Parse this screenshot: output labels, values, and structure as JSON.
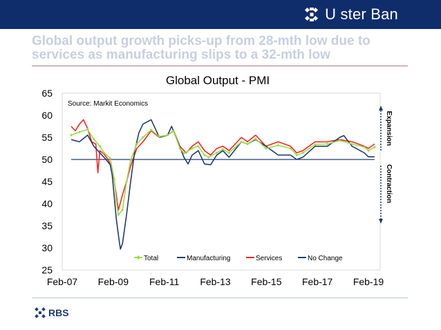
{
  "header": {
    "brand_name": "U ster Ban",
    "brand_icon": "bank-daisy-logo-icon",
    "background_color": "#0f2d6b"
  },
  "headline": {
    "line1": "Global output growth picks-up from 28-mth low due to",
    "line2": "services as manufacturing slips to a 32-mth low"
  },
  "footer": {
    "logo_text": "RBS",
    "logo_icon": "rbs-daisy-logo-icon"
  },
  "chart_data": {
    "type": "line",
    "title": "Global Output - PMI",
    "source": "Source: Markit Economics",
    "x_ticks": [
      "Feb-07",
      "Feb-09",
      "Feb-11",
      "Feb-13",
      "Feb-15",
      "Feb-17",
      "Feb-19"
    ],
    "x_range": [
      "2007-02",
      "2019-02"
    ],
    "ylim": [
      25,
      65
    ],
    "y_ticks": [
      25,
      30,
      35,
      40,
      45,
      50,
      55,
      60,
      65
    ],
    "grid": false,
    "legend_position": "bottom",
    "annotations": {
      "upper": "Expansion",
      "lower": "Contraction"
    },
    "series": [
      {
        "name": "Total",
        "color": "#99dd44",
        "marker": "diamond",
        "points": [
          [
            "2007-01",
            55.5
          ],
          [
            "2007-05",
            56.2
          ],
          [
            "2007-09",
            56.8
          ],
          [
            "2007-12",
            54.6
          ],
          [
            "2008-03",
            53.0
          ],
          [
            "2008-05",
            51.5
          ],
          [
            "2008-08",
            50.3
          ],
          [
            "2008-10",
            45.5
          ],
          [
            "2008-11",
            40.5
          ],
          [
            "2008-12",
            37.5
          ],
          [
            "2009-02",
            38.6
          ],
          [
            "2009-04",
            45.0
          ],
          [
            "2009-06",
            49.8
          ],
          [
            "2009-09",
            53.5
          ],
          [
            "2009-12",
            55.0
          ],
          [
            "2010-04",
            56.7
          ],
          [
            "2010-08",
            55.2
          ],
          [
            "2010-12",
            55.5
          ],
          [
            "2011-03",
            56.4
          ],
          [
            "2011-06",
            52.5
          ],
          [
            "2011-08",
            51.4
          ],
          [
            "2011-12",
            52.5
          ],
          [
            "2012-03",
            53.0
          ],
          [
            "2012-06",
            51.0
          ],
          [
            "2012-08",
            50.5
          ],
          [
            "2012-12",
            51.5
          ],
          [
            "2013-03",
            52.3
          ],
          [
            "2013-06",
            51.5
          ],
          [
            "2013-12",
            54.0
          ],
          [
            "2014-03",
            53.5
          ],
          [
            "2014-07",
            54.7
          ],
          [
            "2014-12",
            52.5
          ],
          [
            "2015-06",
            53.2
          ],
          [
            "2015-12",
            52.5
          ],
          [
            "2016-03",
            51.0
          ],
          [
            "2016-06",
            51.5
          ],
          [
            "2016-12",
            53.4
          ],
          [
            "2017-06",
            53.5
          ],
          [
            "2017-12",
            54.3
          ],
          [
            "2018-06",
            53.5
          ],
          [
            "2018-12",
            52.8
          ],
          [
            "2019-02",
            52.0
          ],
          [
            "2019-05",
            52.8
          ]
        ]
      },
      {
        "name": "Manufacturing",
        "color": "#1f3b73",
        "marker": "none",
        "points": [
          [
            "2007-01",
            54.5
          ],
          [
            "2007-05",
            54.0
          ],
          [
            "2007-09",
            55.5
          ],
          [
            "2007-12",
            53.0
          ],
          [
            "2008-03",
            51.5
          ],
          [
            "2008-06",
            50.0
          ],
          [
            "2008-08",
            48.8
          ],
          [
            "2008-09",
            46.5
          ],
          [
            "2008-10",
            41.5
          ],
          [
            "2008-11",
            36.5
          ],
          [
            "2008-12",
            33.0
          ],
          [
            "2009-01",
            29.7
          ],
          [
            "2009-02",
            31.0
          ],
          [
            "2009-04",
            37.5
          ],
          [
            "2009-06",
            45.0
          ],
          [
            "2009-08",
            52.0
          ],
          [
            "2009-10",
            56.0
          ],
          [
            "2009-12",
            58.0
          ],
          [
            "2010-02",
            58.5
          ],
          [
            "2010-04",
            59.0
          ],
          [
            "2010-06",
            57.0
          ],
          [
            "2010-08",
            55.0
          ],
          [
            "2010-12",
            55.5
          ],
          [
            "2011-02",
            57.5
          ],
          [
            "2011-05",
            54.0
          ],
          [
            "2011-08",
            50.5
          ],
          [
            "2011-10",
            49.0
          ],
          [
            "2011-12",
            51.0
          ],
          [
            "2012-03",
            52.0
          ],
          [
            "2012-06",
            49.0
          ],
          [
            "2012-09",
            48.8
          ],
          [
            "2012-12",
            51.0
          ],
          [
            "2013-03",
            52.0
          ],
          [
            "2013-06",
            50.5
          ],
          [
            "2013-12",
            54.0
          ],
          [
            "2014-03",
            53.5
          ],
          [
            "2014-07",
            54.5
          ],
          [
            "2014-12",
            53.0
          ],
          [
            "2015-06",
            51.0
          ],
          [
            "2015-12",
            51.0
          ],
          [
            "2016-03",
            50.0
          ],
          [
            "2016-06",
            50.5
          ],
          [
            "2016-12",
            53.0
          ],
          [
            "2017-06",
            53.0
          ],
          [
            "2017-12",
            55.0
          ],
          [
            "2018-02",
            55.4
          ],
          [
            "2018-06",
            53.0
          ],
          [
            "2018-12",
            51.5
          ],
          [
            "2019-02",
            50.6
          ],
          [
            "2019-05",
            50.6
          ]
        ]
      },
      {
        "name": "Services",
        "color": "#ff2222",
        "marker": "none",
        "points": [
          [
            "2007-01",
            57.5
          ],
          [
            "2007-03",
            56.5
          ],
          [
            "2007-05",
            58.0
          ],
          [
            "2007-07",
            59.0
          ],
          [
            "2007-09",
            57.0
          ],
          [
            "2007-11",
            54.0
          ],
          [
            "2008-01",
            53.5
          ],
          [
            "2008-02",
            47.0
          ],
          [
            "2008-03",
            52.0
          ],
          [
            "2008-05",
            51.2
          ],
          [
            "2008-07",
            50.0
          ],
          [
            "2008-09",
            48.0
          ],
          [
            "2008-11",
            42.0
          ],
          [
            "2008-12",
            38.5
          ],
          [
            "2009-02",
            42.0
          ],
          [
            "2009-04",
            45.0
          ],
          [
            "2009-06",
            48.5
          ],
          [
            "2009-09",
            52.5
          ],
          [
            "2009-12",
            54.0
          ],
          [
            "2010-04",
            56.5
          ],
          [
            "2010-08",
            55.0
          ],
          [
            "2010-12",
            55.5
          ],
          [
            "2011-03",
            56.5
          ],
          [
            "2011-06",
            53.0
          ],
          [
            "2011-09",
            51.5
          ],
          [
            "2011-12",
            53.0
          ],
          [
            "2012-03",
            54.0
          ],
          [
            "2012-06",
            52.0
          ],
          [
            "2012-09",
            51.0
          ],
          [
            "2012-12",
            52.5
          ],
          [
            "2013-03",
            53.0
          ],
          [
            "2013-06",
            52.0
          ],
          [
            "2013-12",
            55.0
          ],
          [
            "2014-03",
            54.0
          ],
          [
            "2014-07",
            55.5
          ],
          [
            "2014-12",
            53.0
          ],
          [
            "2015-06",
            54.0
          ],
          [
            "2015-12",
            53.0
          ],
          [
            "2016-03",
            51.5
          ],
          [
            "2016-06",
            52.0
          ],
          [
            "2016-12",
            54.0
          ],
          [
            "2017-06",
            54.0
          ],
          [
            "2017-12",
            54.5
          ],
          [
            "2018-06",
            54.0
          ],
          [
            "2018-12",
            53.0
          ],
          [
            "2019-02",
            52.5
          ],
          [
            "2019-05",
            53.5
          ]
        ]
      },
      {
        "name": "No Change",
        "color": "#1f3b73",
        "marker": "none",
        "points": [
          [
            "2007-01",
            50
          ],
          [
            "2019-05",
            50
          ]
        ]
      }
    ]
  }
}
